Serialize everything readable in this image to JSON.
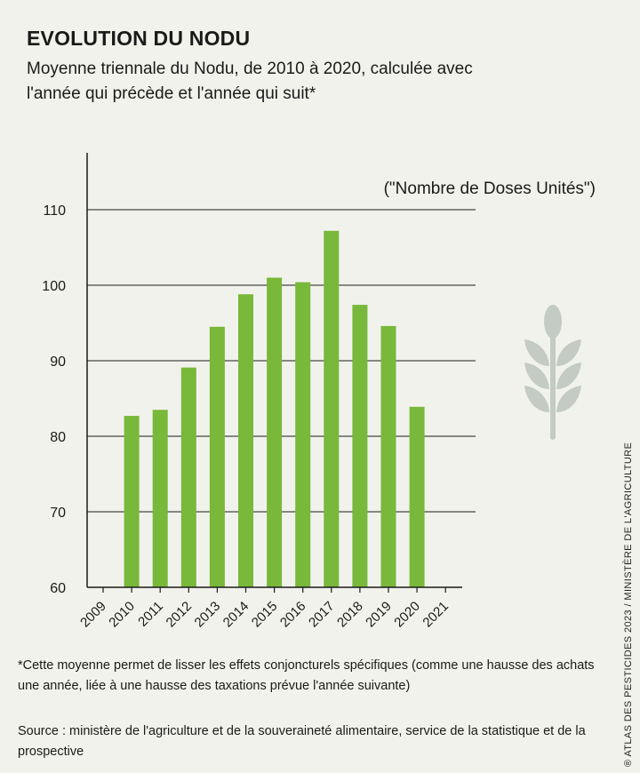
{
  "header": {
    "title": "EVOLUTION DU NODU",
    "subtitle": "Moyenne triennale du Nodu, de 2010 à 2020, calculée avec l'année qui précède et l'année qui suit*"
  },
  "chart_data": {
    "type": "bar",
    "unit_label": "(\"Nombre de Doses Unités\")",
    "categories": [
      "2009",
      "2010",
      "2011",
      "2012",
      "2013",
      "2014",
      "2015",
      "2016",
      "2017",
      "2018",
      "2019",
      "2020",
      "2021"
    ],
    "values": [
      null,
      82.7,
      83.5,
      89.1,
      94.5,
      98.8,
      101.0,
      100.4,
      107.2,
      97.4,
      94.6,
      83.9,
      null
    ],
    "ylim": [
      60,
      110
    ],
    "yticks": [
      60,
      70,
      80,
      90,
      100,
      110
    ],
    "bar_color": "#78b83a",
    "grid": true
  },
  "footer": {
    "footnote": "*Cette moyenne permet de lisser les effets conjoncturels spécifiques (comme une hausse des achats une année, liée à une hausse des taxations prévue l'année suivante)",
    "source": "Source : ministère de l'agriculture et de la souveraineté alimentaire, service de la statistique et de la prospective",
    "credit": "® ATLAS DES PESTICIDES 2023 / MINISTÈRE DE L'AGRICULTURE"
  },
  "decoration": {
    "icon": "wheat-icon",
    "icon_color": "#c4cac4"
  }
}
